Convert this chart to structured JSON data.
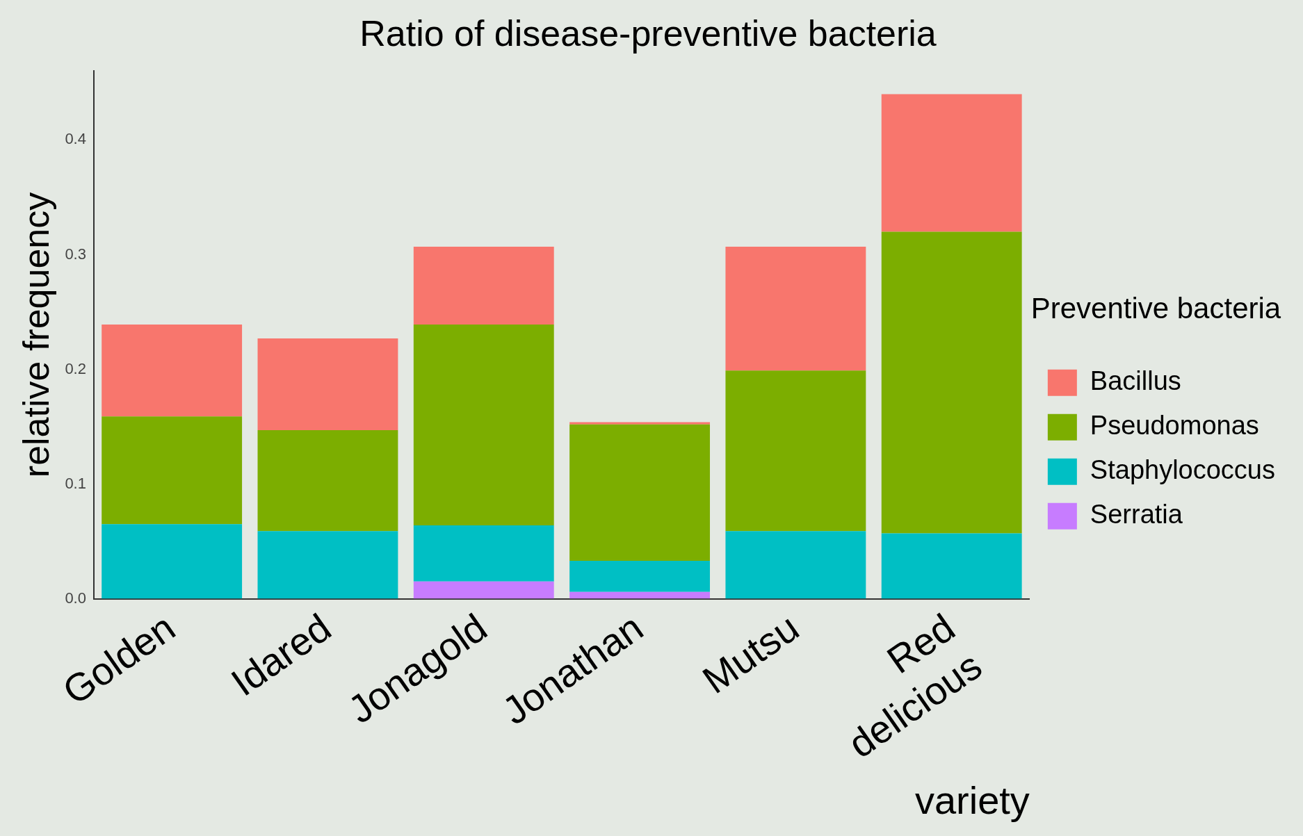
{
  "chart_data": {
    "type": "bar",
    "title": "Ratio of disease-preventive bacteria",
    "xlabel": "variety",
    "ylabel": "relative frequency",
    "legend_title": "Preventive bacteria",
    "categories": [
      "Golden",
      "Idared",
      "Jonagold",
      "Jonathan",
      "Mutsu",
      "Red delicious"
    ],
    "stacked": true,
    "legend": "right",
    "grid": false,
    "ylim": [
      0,
      0.46
    ],
    "yticks": [
      {
        "value": 0,
        "label": "0.0"
      },
      {
        "value": 0.1,
        "label": "0.1"
      },
      {
        "value": 0.2,
        "label": "0.2"
      },
      {
        "value": 0.3,
        "label": "0.3"
      },
      {
        "value": 0.4,
        "label": "0.4"
      }
    ],
    "series": [
      {
        "name": "Serratia",
        "color": "#c77cff",
        "values": [
          0,
          0,
          0.015,
          0.006,
          0,
          0
        ]
      },
      {
        "name": "Staphylococcus",
        "color": "#00bfc4",
        "values": [
          0.065,
          0.059,
          0.049,
          0.027,
          0.059,
          0.057
        ]
      },
      {
        "name": "Pseudomonas",
        "color": "#7cae00",
        "values": [
          0.094,
          0.088,
          0.175,
          0.119,
          0.14,
          0.263
        ]
      },
      {
        "name": "Bacillus",
        "color": "#f8766d",
        "values": [
          0.08,
          0.08,
          0.068,
          0.002,
          0.108,
          0.12
        ]
      }
    ]
  }
}
